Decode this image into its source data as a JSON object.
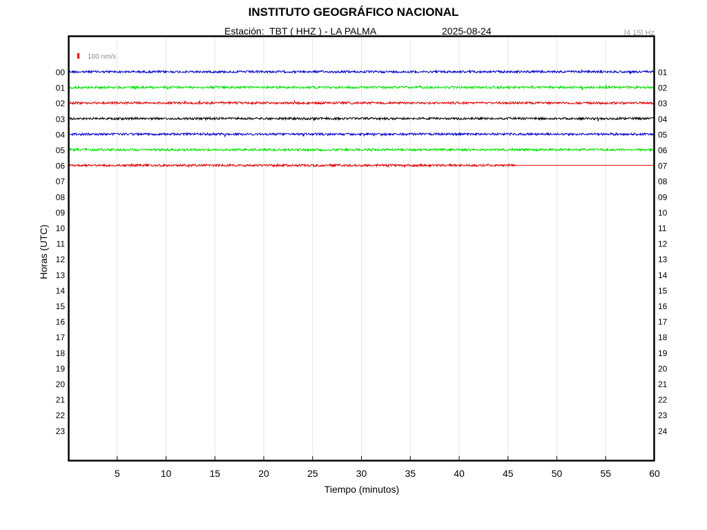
{
  "header": {
    "title": "INSTITUTO GEOGRÁFICO NACIONAL",
    "station": "Estación:  TBT ( HHZ ) - LA PALMA",
    "date": "2025-08-24",
    "filter": "[4 15] Hz"
  },
  "chart_data": {
    "type": "line",
    "title": "INSTITUTO GEOGRÁFICO NACIONAL",
    "xlabel": "Tiempo (minutos)",
    "ylabel": "Horas (UTC)",
    "xlim": [
      0,
      60
    ],
    "x_ticks": [
      5,
      10,
      15,
      20,
      25,
      30,
      35,
      40,
      45,
      50,
      55,
      60
    ],
    "y_ticks_left": [
      "00",
      "01",
      "02",
      "03",
      "04",
      "05",
      "06",
      "07",
      "08",
      "09",
      "10",
      "11",
      "12",
      "13",
      "14",
      "15",
      "16",
      "17",
      "18",
      "19",
      "20",
      "21",
      "22",
      "23"
    ],
    "y_ticks_right": [
      "01",
      "02",
      "03",
      "04",
      "05",
      "06",
      "07",
      "08",
      "09",
      "10",
      "11",
      "12",
      "13",
      "14",
      "15",
      "16",
      "17",
      "18",
      "19",
      "20",
      "21",
      "22",
      "23",
      "24"
    ],
    "scale_label": "100 nm/s",
    "grid": "vertical",
    "series": [
      {
        "hour": "00",
        "color": "#0000c8",
        "x_end": 60
      },
      {
        "hour": "01",
        "color": "#00e000",
        "x_end": 60
      },
      {
        "hour": "02",
        "color": "#e00000",
        "x_end": 60
      },
      {
        "hour": "03",
        "color": "#000000",
        "x_end": 60
      },
      {
        "hour": "04",
        "color": "#0000c8",
        "x_end": 60
      },
      {
        "hour": "05",
        "color": "#00e000",
        "x_end": 60
      },
      {
        "hour": "06",
        "color": "#e00000",
        "x_end": 46
      }
    ]
  }
}
